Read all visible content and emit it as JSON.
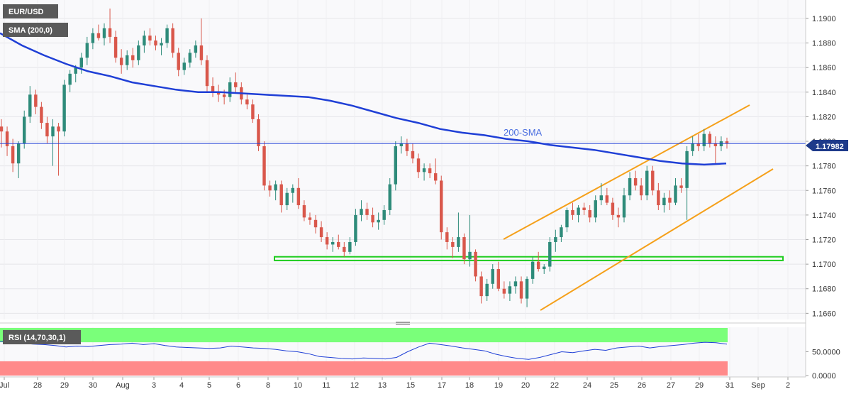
{
  "chart_data": {
    "type": "candlestick",
    "symbol_label": "EUR/USD",
    "indicator_label": "SMA (200,0)",
    "sma_annotation": "200-SMA",
    "last_price_label": "1.17982",
    "last_price": 1.17982,
    "price_axis": {
      "ylim": [
        1.1655,
        1.1915
      ],
      "ticks": [
        "1.1900",
        "1.1880",
        "1.1860",
        "1.1840",
        "1.1820",
        "1.1800",
        "1.1780",
        "1.1760",
        "1.1740",
        "1.1720",
        "1.1700",
        "1.1680",
        "1.1660"
      ]
    },
    "x_labels": [
      "Jul",
      "28",
      "29",
      "30",
      "Aug",
      "3",
      "4",
      "5",
      "6",
      "8",
      "10",
      "11",
      "12",
      "13",
      "15",
      "17",
      "18",
      "19",
      "20",
      "22",
      "24",
      "25",
      "26",
      "27",
      "29",
      "31",
      "Sep",
      "2"
    ],
    "candles": [
      [
        1.1812,
        1.1818,
        1.1795,
        1.1808
      ],
      [
        1.1808,
        1.1812,
        1.1788,
        1.1796
      ],
      [
        1.1796,
        1.1802,
        1.1775,
        1.1782
      ],
      [
        1.1782,
        1.18,
        1.177,
        1.1798
      ],
      [
        1.1798,
        1.1825,
        1.1794,
        1.182
      ],
      [
        1.182,
        1.1845,
        1.1815,
        1.1838
      ],
      [
        1.1838,
        1.1842,
        1.1822,
        1.1828
      ],
      [
        1.1828,
        1.1832,
        1.181,
        1.1815
      ],
      [
        1.1815,
        1.182,
        1.1798,
        1.1804
      ],
      [
        1.1804,
        1.1818,
        1.178,
        1.1812
      ],
      [
        1.1812,
        1.1815,
        1.1772,
        1.1808
      ],
      [
        1.1808,
        1.185,
        1.1804,
        1.1846
      ],
      [
        1.1846,
        1.1858,
        1.184,
        1.1855
      ],
      [
        1.1855,
        1.1862,
        1.1848,
        1.186
      ],
      [
        1.186,
        1.1872,
        1.1855,
        1.1868
      ],
      [
        1.1868,
        1.1885,
        1.1862,
        1.188
      ],
      [
        1.188,
        1.1892,
        1.1875,
        1.1888
      ],
      [
        1.1888,
        1.1895,
        1.1882,
        1.1884
      ],
      [
        1.1884,
        1.1896,
        1.1878,
        1.1892
      ],
      [
        1.1892,
        1.1908,
        1.188,
        1.1885
      ],
      [
        1.1885,
        1.189,
        1.1864,
        1.1868
      ],
      [
        1.1868,
        1.1875,
        1.1855,
        1.1862
      ],
      [
        1.1862,
        1.1874,
        1.1858,
        1.187
      ],
      [
        1.187,
        1.1876,
        1.186,
        1.1866
      ],
      [
        1.1866,
        1.1882,
        1.1862,
        1.1878
      ],
      [
        1.1878,
        1.189,
        1.1872,
        1.1886
      ],
      [
        1.1886,
        1.1892,
        1.1878,
        1.1882
      ],
      [
        1.1882,
        1.1886,
        1.1874,
        1.1878
      ],
      [
        1.1878,
        1.1884,
        1.187,
        1.188
      ],
      [
        1.188,
        1.1895,
        1.1876,
        1.1892
      ],
      [
        1.1892,
        1.1896,
        1.1868,
        1.1872
      ],
      [
        1.1872,
        1.1876,
        1.1853,
        1.1858
      ],
      [
        1.1858,
        1.1868,
        1.1854,
        1.1864
      ],
      [
        1.1864,
        1.1875,
        1.186,
        1.1872
      ],
      [
        1.1872,
        1.1882,
        1.1868,
        1.1878
      ],
      [
        1.1878,
        1.19,
        1.1862,
        1.1866
      ],
      [
        1.1866,
        1.187,
        1.184,
        1.1845
      ],
      [
        1.1845,
        1.1852,
        1.1836,
        1.184
      ],
      [
        1.184,
        1.1846,
        1.1832,
        1.1838
      ],
      [
        1.1838,
        1.1842,
        1.183,
        1.1836
      ],
      [
        1.1836,
        1.1852,
        1.1832,
        1.1848
      ],
      [
        1.1848,
        1.1856,
        1.184,
        1.1844
      ],
      [
        1.1844,
        1.1848,
        1.183,
        1.1834
      ],
      [
        1.1834,
        1.1838,
        1.1826,
        1.183
      ],
      [
        1.183,
        1.1834,
        1.1815,
        1.1818
      ],
      [
        1.1818,
        1.1822,
        1.1792,
        1.1796
      ],
      [
        1.1796,
        1.18,
        1.176,
        1.1764
      ],
      [
        1.1764,
        1.1768,
        1.1755,
        1.176
      ],
      [
        1.176,
        1.1768,
        1.1752,
        1.1765
      ],
      [
        1.1765,
        1.1768,
        1.1742,
        1.1748
      ],
      [
        1.1748,
        1.1762,
        1.1744,
        1.1758
      ],
      [
        1.1758,
        1.1765,
        1.175,
        1.1762
      ],
      [
        1.1762,
        1.177,
        1.1745,
        1.1748
      ],
      [
        1.1748,
        1.1752,
        1.1735,
        1.1738
      ],
      [
        1.1738,
        1.1742,
        1.1732,
        1.1736
      ],
      [
        1.1736,
        1.174,
        1.1725,
        1.173
      ],
      [
        1.173,
        1.1735,
        1.1718,
        1.1722
      ],
      [
        1.1722,
        1.1726,
        1.1712,
        1.1716
      ],
      [
        1.1716,
        1.1722,
        1.171,
        1.1718
      ],
      [
        1.1718,
        1.1724,
        1.1712,
        1.1714
      ],
      [
        1.1714,
        1.1718,
        1.1706,
        1.171
      ],
      [
        1.171,
        1.1722,
        1.1708,
        1.1718
      ],
      [
        1.1718,
        1.1745,
        1.1715,
        1.174
      ],
      [
        1.174,
        1.1752,
        1.1735,
        1.1745
      ],
      [
        1.1745,
        1.175,
        1.1736,
        1.174
      ],
      [
        1.174,
        1.1746,
        1.173,
        1.1734
      ],
      [
        1.1734,
        1.1742,
        1.1728,
        1.1736
      ],
      [
        1.1736,
        1.1748,
        1.1732,
        1.1744
      ],
      [
        1.1744,
        1.177,
        1.174,
        1.1765
      ],
      [
        1.1765,
        1.18,
        1.176,
        1.1796
      ],
      [
        1.1796,
        1.1804,
        1.179,
        1.1798
      ],
      [
        1.1798,
        1.1802,
        1.1788,
        1.1792
      ],
      [
        1.1792,
        1.1798,
        1.1782,
        1.1786
      ],
      [
        1.1786,
        1.179,
        1.177,
        1.1775
      ],
      [
        1.1775,
        1.1782,
        1.1768,
        1.1778
      ],
      [
        1.1778,
        1.1782,
        1.177,
        1.1774
      ],
      [
        1.1774,
        1.1786,
        1.1765,
        1.1768
      ],
      [
        1.1768,
        1.1772,
        1.172,
        1.1726
      ],
      [
        1.1726,
        1.173,
        1.1712,
        1.1718
      ],
      [
        1.1718,
        1.1722,
        1.1705,
        1.1714
      ],
      [
        1.1714,
        1.1742,
        1.171,
        1.1722
      ],
      [
        1.1722,
        1.1725,
        1.17,
        1.1704
      ],
      [
        1.1704,
        1.174,
        1.1698,
        1.171
      ],
      [
        1.171,
        1.1712,
        1.1686,
        1.169
      ],
      [
        1.169,
        1.1694,
        1.1668,
        1.1674
      ],
      [
        1.1674,
        1.1688,
        1.167,
        1.1684
      ],
      [
        1.1684,
        1.17,
        1.168,
        1.1696
      ],
      [
        1.1696,
        1.1702,
        1.1678,
        1.168
      ],
      [
        1.168,
        1.1686,
        1.1672,
        1.1676
      ],
      [
        1.1676,
        1.1686,
        1.167,
        1.1682
      ],
      [
        1.1682,
        1.169,
        1.1676,
        1.1686
      ],
      [
        1.1686,
        1.169,
        1.1668,
        1.1672
      ],
      [
        1.1672,
        1.169,
        1.1665,
        1.1688
      ],
      [
        1.1688,
        1.1706,
        1.1684,
        1.1702
      ],
      [
        1.1702,
        1.171,
        1.1694,
        1.1696
      ],
      [
        1.1696,
        1.17,
        1.1692,
        1.1698
      ],
      [
        1.1698,
        1.1722,
        1.1694,
        1.1718
      ],
      [
        1.1718,
        1.1728,
        1.171,
        1.1722
      ],
      [
        1.1722,
        1.1732,
        1.1718,
        1.173
      ],
      [
        1.173,
        1.1746,
        1.1726,
        1.1744
      ],
      [
        1.1744,
        1.175,
        1.1736,
        1.174
      ],
      [
        1.174,
        1.1748,
        1.1734,
        1.1746
      ],
      [
        1.1746,
        1.175,
        1.174,
        1.1744
      ],
      [
        1.1744,
        1.1748,
        1.1734,
        1.1738
      ],
      [
        1.1738,
        1.1756,
        1.1734,
        1.1752
      ],
      [
        1.1752,
        1.1766,
        1.1748,
        1.1756
      ],
      [
        1.1756,
        1.1762,
        1.1748,
        1.175
      ],
      [
        1.175,
        1.1754,
        1.1736,
        1.174
      ],
      [
        1.174,
        1.1746,
        1.173,
        1.1738
      ],
      [
        1.1738,
        1.1762,
        1.1734,
        1.1756
      ],
      [
        1.1756,
        1.1775,
        1.1752,
        1.177
      ],
      [
        1.177,
        1.1776,
        1.176,
        1.1764
      ],
      [
        1.1764,
        1.177,
        1.1752,
        1.1756
      ],
      [
        1.1756,
        1.178,
        1.1752,
        1.1776
      ],
      [
        1.1776,
        1.178,
        1.1756,
        1.176
      ],
      [
        1.176,
        1.1766,
        1.1744,
        1.1748
      ],
      [
        1.1748,
        1.1758,
        1.1742,
        1.1754
      ],
      [
        1.1754,
        1.176,
        1.1744,
        1.175
      ],
      [
        1.175,
        1.177,
        1.1748,
        1.1764
      ],
      [
        1.1764,
        1.177,
        1.1758,
        1.1762
      ],
      [
        1.1762,
        1.1796,
        1.1736,
        1.1792
      ],
      [
        1.1792,
        1.1804,
        1.1788,
        1.1798
      ],
      [
        1.1798,
        1.1806,
        1.1792,
        1.1796
      ],
      [
        1.1796,
        1.181,
        1.1792,
        1.1806
      ],
      [
        1.1806,
        1.1808,
        1.1795,
        1.1798
      ],
      [
        1.1798,
        1.1804,
        1.1782,
        1.1796
      ],
      [
        1.1796,
        1.1804,
        1.1792,
        1.18
      ],
      [
        1.18,
        1.1803,
        1.1794,
        1.1798
      ]
    ],
    "sma_200": [
      1.1888,
      1.1878,
      1.187,
      1.1863,
      1.1857,
      1.1853,
      1.1848,
      1.1845,
      1.1842,
      1.184,
      1.184,
      1.1839,
      1.1838,
      1.1837,
      1.1836,
      1.1833,
      1.1829,
      1.1824,
      1.1819,
      1.1815,
      1.181,
      1.1807,
      1.1805,
      1.1802,
      1.18,
      1.1797,
      1.1795,
      1.1793,
      1.179,
      1.1787,
      1.1784,
      1.1782,
      1.1781,
      1.1782
    ],
    "resistance_channel": [
      [
        1.1722,
        1.1833
      ],
      [
        1.1665,
        1.1775
      ]
    ],
    "support_zone": [
      1.1703,
      1.1706
    ],
    "rsi": {
      "label": "RSI (14,70,30,1)",
      "ylim": [
        0,
        100
      ],
      "overbought": 70,
      "oversold": 30,
      "ticks": [
        "50.0000",
        "0.0000"
      ],
      "values": [
        72,
        70,
        68,
        66,
        65,
        63,
        60,
        62,
        61,
        63,
        65,
        66,
        68,
        65,
        67,
        63,
        60,
        59,
        58,
        57,
        58,
        62,
        60,
        58,
        57,
        55,
        52,
        50,
        46,
        40,
        38,
        36,
        35,
        37,
        36,
        35,
        38,
        50,
        60,
        68,
        65,
        62,
        58,
        55,
        52,
        45,
        40,
        36,
        34,
        38,
        44,
        50,
        48,
        52,
        55,
        53,
        58,
        60,
        62,
        58,
        61,
        63,
        65,
        68,
        70,
        69,
        66
      ]
    }
  }
}
